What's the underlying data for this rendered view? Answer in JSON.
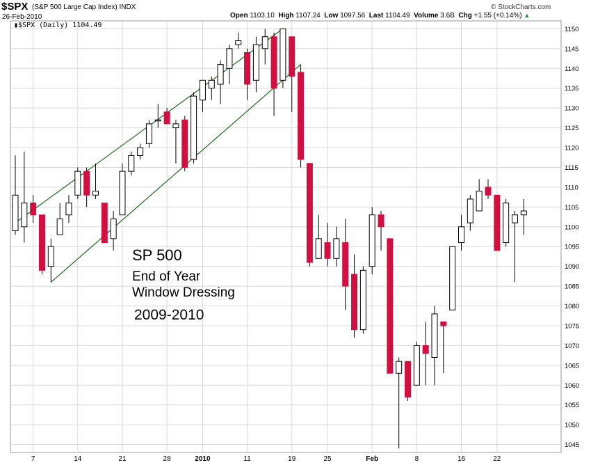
{
  "header": {
    "symbol": "$SPX",
    "description": "(S&P 500 Large Cap Index)",
    "exchange": "INDX",
    "date": "26-Feb-2010",
    "credit": "© StockCharts.com",
    "open_label": "Open",
    "open": "1103.10",
    "high_label": "High",
    "high": "1107.24",
    "low_label": "Low",
    "low": "1097.56",
    "last_label": "Last",
    "last": "1104.49",
    "volume_label": "Volume",
    "volume": "3.6B",
    "chg_label": "Chg",
    "chg": "+1.55 (+0.14%)",
    "legend": "$SPX (Daily) 1104.49"
  },
  "annotations": {
    "line1": "SP 500",
    "line2": "End of Year",
    "line3": "Window Dressing",
    "line4": "2009-2010"
  },
  "colors": {
    "up_fill": "#ffffff",
    "down_fill": "#d01040",
    "wick": "#000000",
    "channel": "#1a6b1a",
    "grid": "#d8d8d8",
    "chg_arrow": "#2a8a2a"
  },
  "chart_data": {
    "type": "candlestick",
    "title": "$SPX (S&P 500 Large Cap Index) INDX",
    "ylim": [
      1043,
      1152
    ],
    "y_ticks": [
      1045,
      1050,
      1055,
      1060,
      1065,
      1070,
      1075,
      1080,
      1085,
      1090,
      1095,
      1100,
      1105,
      1110,
      1115,
      1120,
      1125,
      1130,
      1135,
      1140,
      1145,
      1150
    ],
    "x_tick_labels": [
      {
        "label": "7",
        "index": 2
      },
      {
        "label": "14",
        "index": 7
      },
      {
        "label": "21",
        "index": 12
      },
      {
        "label": "28",
        "index": 17
      },
      {
        "label": "2010",
        "index": 21
      },
      {
        "label": "11",
        "index": 26
      },
      {
        "label": "19",
        "index": 31
      },
      {
        "label": "25",
        "index": 35
      },
      {
        "label": "Feb",
        "index": 40
      },
      {
        "label": "8",
        "index": 45
      },
      {
        "label": "16",
        "index": 50
      },
      {
        "label": "22",
        "index": 54
      }
    ],
    "candles": [
      {
        "o": 1099,
        "h": 1118,
        "l": 1098,
        "c": 1108
      },
      {
        "o": 1100,
        "h": 1119,
        "l": 1096,
        "c": 1106
      },
      {
        "o": 1106,
        "h": 1108,
        "l": 1101,
        "c": 1103
      },
      {
        "o": 1103,
        "h": 1103,
        "l": 1088,
        "c": 1089
      },
      {
        "o": 1090,
        "h": 1097,
        "l": 1086,
        "c": 1095
      },
      {
        "o": 1098,
        "h": 1106,
        "l": 1098,
        "c": 1102
      },
      {
        "o": 1103,
        "h": 1108,
        "l": 1101,
        "c": 1106
      },
      {
        "o": 1108,
        "h": 1115,
        "l": 1107,
        "c": 1114
      },
      {
        "o": 1114,
        "h": 1115,
        "l": 1105,
        "c": 1108
      },
      {
        "o": 1108,
        "h": 1116,
        "l": 1107,
        "c": 1109
      },
      {
        "o": 1106,
        "h": 1106,
        "l": 1096,
        "c": 1096
      },
      {
        "o": 1097,
        "h": 1104,
        "l": 1094,
        "c": 1102
      },
      {
        "o": 1103,
        "h": 1116,
        "l": 1103,
        "c": 1114
      },
      {
        "o": 1114,
        "h": 1119,
        "l": 1113,
        "c": 1118
      },
      {
        "o": 1118,
        "h": 1121,
        "l": 1117,
        "c": 1120
      },
      {
        "o": 1121,
        "h": 1127,
        "l": 1120,
        "c": 1126
      },
      {
        "o": 1127,
        "h": 1131,
        "l": 1125,
        "c": 1127
      },
      {
        "o": 1129,
        "h": 1130,
        "l": 1126,
        "c": 1126
      },
      {
        "o": 1125,
        "h": 1127,
        "l": 1116,
        "c": 1126
      },
      {
        "o": 1127,
        "h": 1128,
        "l": 1114,
        "c": 1115
      },
      {
        "o": 1117,
        "h": 1134,
        "l": 1116,
        "c": 1133
      },
      {
        "o": 1132,
        "h": 1137,
        "l": 1129,
        "c": 1137
      },
      {
        "o": 1135,
        "h": 1138,
        "l": 1132,
        "c": 1137
      },
      {
        "o": 1136,
        "h": 1142,
        "l": 1131,
        "c": 1141
      },
      {
        "o": 1140,
        "h": 1146,
        "l": 1136,
        "c": 1145
      },
      {
        "o": 1146,
        "h": 1149,
        "l": 1145,
        "c": 1147
      },
      {
        "o": 1144,
        "h": 1145,
        "l": 1132,
        "c": 1136
      },
      {
        "o": 1137,
        "h": 1148,
        "l": 1134,
        "c": 1146
      },
      {
        "o": 1145,
        "h": 1150,
        "l": 1141,
        "c": 1148
      },
      {
        "o": 1148,
        "h": 1149,
        "l": 1128,
        "c": 1135
      },
      {
        "o": 1137,
        "h": 1150,
        "l": 1135,
        "c": 1150
      },
      {
        "o": 1148,
        "h": 1148,
        "l": 1129,
        "c": 1138
      },
      {
        "o": 1139,
        "h": 1141,
        "l": 1115,
        "c": 1117
      },
      {
        "o": 1116,
        "h": 1116,
        "l": 1090,
        "c": 1091
      },
      {
        "o": 1092,
        "h": 1103,
        "l": 1092,
        "c": 1097
      },
      {
        "o": 1096,
        "h": 1101,
        "l": 1090,
        "c": 1092
      },
      {
        "o": 1092,
        "h": 1100,
        "l": 1090,
        "c": 1097
      },
      {
        "o": 1096,
        "h": 1102,
        "l": 1079,
        "c": 1085
      },
      {
        "o": 1088,
        "h": 1093,
        "l": 1072,
        "c": 1074
      },
      {
        "o": 1074,
        "h": 1090,
        "l": 1073,
        "c": 1089
      },
      {
        "o": 1090,
        "h": 1105,
        "l": 1088,
        "c": 1103
      },
      {
        "o": 1103,
        "h": 1104,
        "l": 1094,
        "c": 1100
      },
      {
        "o": 1097,
        "h": 1097,
        "l": 1063,
        "c": 1063
      },
      {
        "o": 1063,
        "h": 1067,
        "l": 1044,
        "c": 1066
      },
      {
        "o": 1066,
        "h": 1066,
        "l": 1056,
        "c": 1057
      },
      {
        "o": 1060,
        "h": 1071,
        "l": 1060,
        "c": 1070
      },
      {
        "o": 1070,
        "h": 1076,
        "l": 1060,
        "c": 1068
      },
      {
        "o": 1067,
        "h": 1080,
        "l": 1060,
        "c": 1078
      },
      {
        "o": 1076,
        "h": 1076,
        "l": 1063,
        "c": 1075
      },
      {
        "o": 1079,
        "h": 1095,
        "l": 1079,
        "c": 1095
      },
      {
        "o": 1096,
        "h": 1103,
        "l": 1094,
        "c": 1100
      },
      {
        "o": 1101,
        "h": 1108,
        "l": 1099,
        "c": 1107
      },
      {
        "o": 1104,
        "h": 1112,
        "l": 1104,
        "c": 1109
      },
      {
        "o": 1110,
        "h": 1112,
        "l": 1107,
        "c": 1108
      },
      {
        "o": 1108,
        "h": 1108,
        "l": 1094,
        "c": 1094
      },
      {
        "o": 1096,
        "h": 1107,
        "l": 1095,
        "c": 1106
      },
      {
        "o": 1101,
        "h": 1104,
        "l": 1086,
        "c": 1103
      },
      {
        "o": 1103,
        "h": 1107,
        "l": 1098,
        "c": 1104
      }
    ],
    "channel_lines": [
      {
        "from": {
          "index": 0,
          "value": 1101
        },
        "to": {
          "index": 30,
          "value": 1150
        }
      },
      {
        "from": {
          "index": 4,
          "value": 1086
        },
        "to": {
          "index": 32,
          "value": 1141
        }
      }
    ],
    "grid": true
  }
}
